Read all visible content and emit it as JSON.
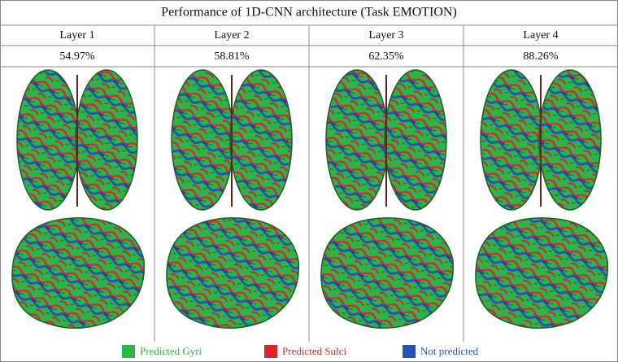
{
  "title": "Performance of 1D-CNN architecture (Task EMOTION)",
  "columns": [
    {
      "layer": "Layer 1",
      "accuracy": "54.97%"
    },
    {
      "layer": "Layer 2",
      "accuracy": "58.81%"
    },
    {
      "layer": "Layer 3",
      "accuracy": "62.35%"
    },
    {
      "layer": "Layer 4",
      "accuracy": "88.26%"
    }
  ],
  "legend": [
    {
      "label": "Predicted Gyri",
      "color": "#2fb24a"
    },
    {
      "label": "Predicted Sulci",
      "color": "#d8262b"
    },
    {
      "label": "Not predicted",
      "color": "#2453b5"
    }
  ]
}
